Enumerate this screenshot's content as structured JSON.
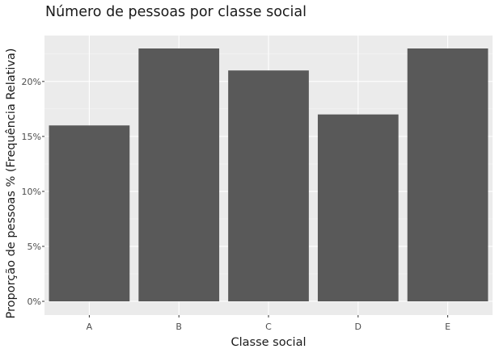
{
  "chart_data": {
    "type": "bar",
    "title": "Número de pessoas por classe social",
    "xlabel": "Classe social",
    "ylabel": "Proporção de pessoas % (Frequência Relativa)",
    "categories": [
      "A",
      "B",
      "C",
      "D",
      "E"
    ],
    "values": [
      16,
      23,
      21,
      17,
      23
    ],
    "unit": "%",
    "yticks": [
      0,
      5,
      10,
      15,
      20
    ],
    "ytick_labels": [
      "0%",
      "5%",
      "10%",
      "15%",
      "20%"
    ],
    "ylim": [
      0,
      24.3
    ],
    "grid": true,
    "legend": "none",
    "colors": {
      "bar": "#595959",
      "panel": "#ebebeb",
      "grid_major": "#ffffff",
      "grid_minor": "#f5f5f5"
    }
  }
}
